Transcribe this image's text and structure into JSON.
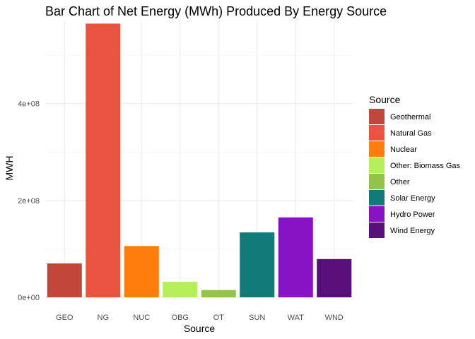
{
  "chart_data": {
    "type": "bar",
    "title": "Bar Chart of Net Energy (MWh) Produced By Energy Source",
    "xlabel": "Source",
    "ylabel": "MWH",
    "categories": [
      "GEO",
      "NG",
      "NUC",
      "OBG",
      "OT",
      "SUN",
      "WAT",
      "WND"
    ],
    "values": [
      70000000,
      565000000,
      106000000,
      32000000,
      15000000,
      134000000,
      165000000,
      79000000
    ],
    "colors": [
      "#C2473A",
      "#E95440",
      "#FF7F0E",
      "#B6EF5A",
      "#94C34A",
      "#127B7A",
      "#8713C5",
      "#580F7A"
    ],
    "ylim": [
      0,
      570000000
    ],
    "yticks": [
      0,
      200000000,
      400000000
    ],
    "ytick_labels": [
      "0e+00",
      "2e+08",
      "4e+08"
    ],
    "grid": true,
    "legend_placement": "right",
    "legend": {
      "title": "Source",
      "entries": [
        "Geothermal",
        "Natural Gas",
        "Nuclear",
        "Other: Biomass Gas",
        "Other",
        "Solar Energy",
        "Hydro Power",
        "Wind Energy"
      ]
    }
  }
}
